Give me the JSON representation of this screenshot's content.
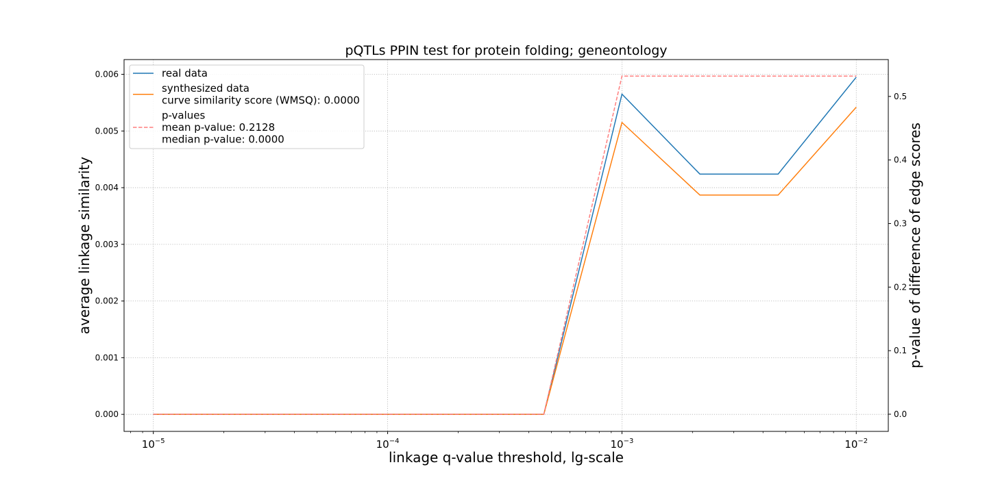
{
  "chart_data": {
    "type": "line",
    "title": "pQTLs PPIN test for protein folding; geneontology",
    "xlabel": "linkage q-value threshold, lg-scale",
    "ylabel": "average linkage similarity",
    "y2label": "p-value of difference of edge scores",
    "x_scale": "log10",
    "xlim": [
      7.5e-06,
      0.0137
    ],
    "ylim": [
      -0.0003,
      0.00626
    ],
    "y2lim": [
      -0.027,
      0.558
    ],
    "grid": true,
    "legend_position": "upper left",
    "x_ticks": [
      {
        "value": 1e-05,
        "base": "10",
        "exp": "−5"
      },
      {
        "value": 0.0001,
        "base": "10",
        "exp": "−4"
      },
      {
        "value": 0.001,
        "base": "10",
        "exp": "−3"
      },
      {
        "value": 0.01,
        "base": "10",
        "exp": "−2"
      }
    ],
    "y_ticks": [
      "0.000",
      "0.001",
      "0.002",
      "0.003",
      "0.004",
      "0.005",
      "0.006"
    ],
    "y2_ticks": [
      "0.0",
      "0.1",
      "0.2",
      "0.3",
      "0.4",
      "0.5"
    ],
    "x": [
      1e-05,
      2.15e-05,
      4.64e-05,
      0.0001,
      0.000215,
      0.000464,
      0.001,
      0.00215,
      0.00464,
      0.01
    ],
    "series": [
      {
        "name": "real data",
        "axis": "left",
        "color": "#1f77b4",
        "dash": "solid",
        "values": [
          0,
          0,
          0,
          0,
          0,
          0,
          0.00565,
          0.00424,
          0.00424,
          0.00595
        ]
      },
      {
        "name": "synthesized data",
        "axis": "left",
        "color": "#ff7f0e",
        "dash": "solid",
        "values": [
          0,
          0,
          0,
          0,
          0,
          0,
          0.00515,
          0.00387,
          0.00387,
          0.00542
        ]
      },
      {
        "name": "p-values",
        "axis": "right",
        "color": "#ff7f7f",
        "dash": "dashed",
        "values": [
          0,
          0,
          0,
          0,
          0,
          0,
          0.532,
          0.532,
          0.532,
          0.532
        ]
      }
    ],
    "legend": [
      {
        "series": 0,
        "lines": [
          "real data"
        ]
      },
      {
        "series": 1,
        "lines": [
          "synthesized data",
          "curve similarity score (WMSQ): 0.0000"
        ]
      },
      {
        "series": 2,
        "lines": [
          "p-values",
          "mean p-value: 0.2128",
          "median p-value: 0.0000"
        ]
      }
    ]
  }
}
